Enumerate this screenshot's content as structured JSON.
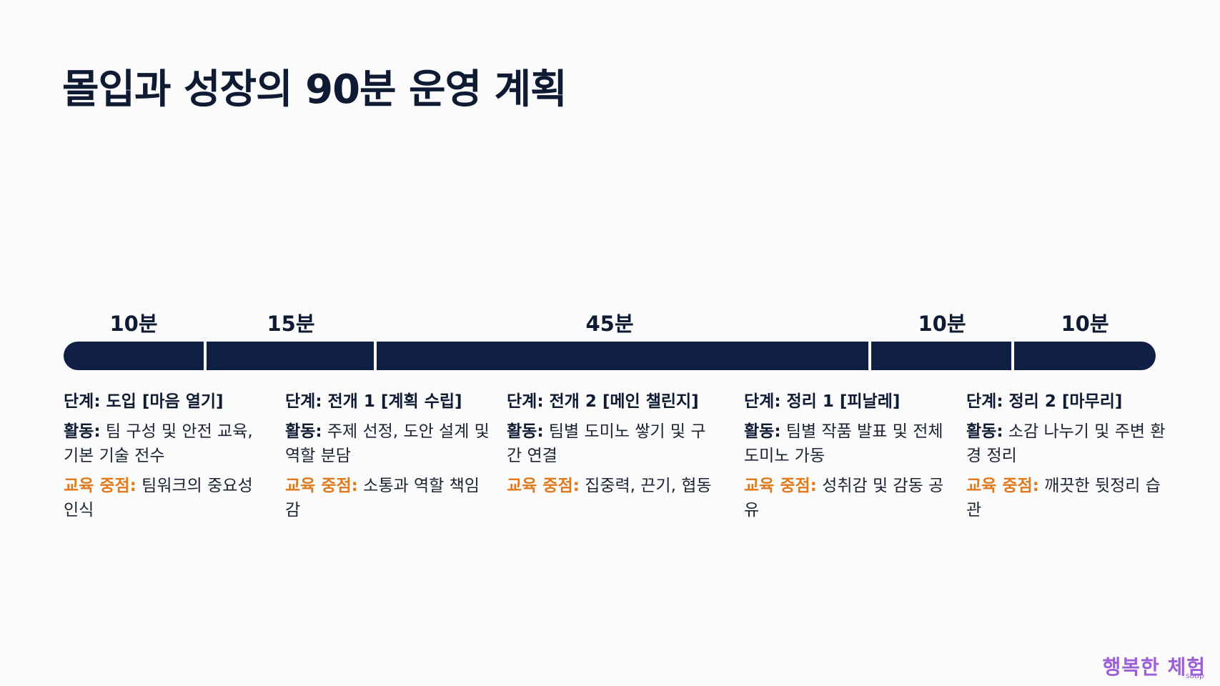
{
  "title": "몰입과 성장의 90분 운영 계획",
  "timeline": {
    "segments": [
      {
        "duration": "10분",
        "minutes": 10
      },
      {
        "duration": "15분",
        "minutes": 15
      },
      {
        "duration": "45분",
        "minutes": 45
      },
      {
        "duration": "10분",
        "minutes": 10
      },
      {
        "duration": "10분",
        "minutes": 10
      }
    ],
    "bar_color": "#0f1f45"
  },
  "labels": {
    "activity": "활동:",
    "focus": "교육 중점:"
  },
  "stages": [
    {
      "title": "단계: 도입 [마음 열기]",
      "activity": "팀 구성 및 안전 교육, 기본 기술 전수",
      "focus": "팀워크의 중요성 인식"
    },
    {
      "title": "단계: 전개 1 [계획 수립]",
      "activity": "주제 선정, 도안 설계 및 역할 분담",
      "focus": "소통과 역할 책임감"
    },
    {
      "title": "단계: 전개 2 [메인 챌린지]",
      "activity": "팀별 도미노 쌓기 및 구간 연결",
      "focus": "집중력, 끈기, 협동"
    },
    {
      "title": "단계: 정리 1 [피날레]",
      "activity": "팀별 작품 발표 및 전체 도미노 가동",
      "focus": "성취감 및 감동 공유"
    },
    {
      "title": "단계: 정리 2 [마무리]",
      "activity": "소감 나누기 및 주변 환경 정리",
      "focus": "깨끗한 뒷정리 습관"
    }
  ],
  "colors": {
    "focus_label": "#e07a1c",
    "heading": "#0f1b33",
    "watermark": "#9c5fd6"
  },
  "watermark": {
    "text": "행복한 체험",
    "sub": "soop"
  }
}
